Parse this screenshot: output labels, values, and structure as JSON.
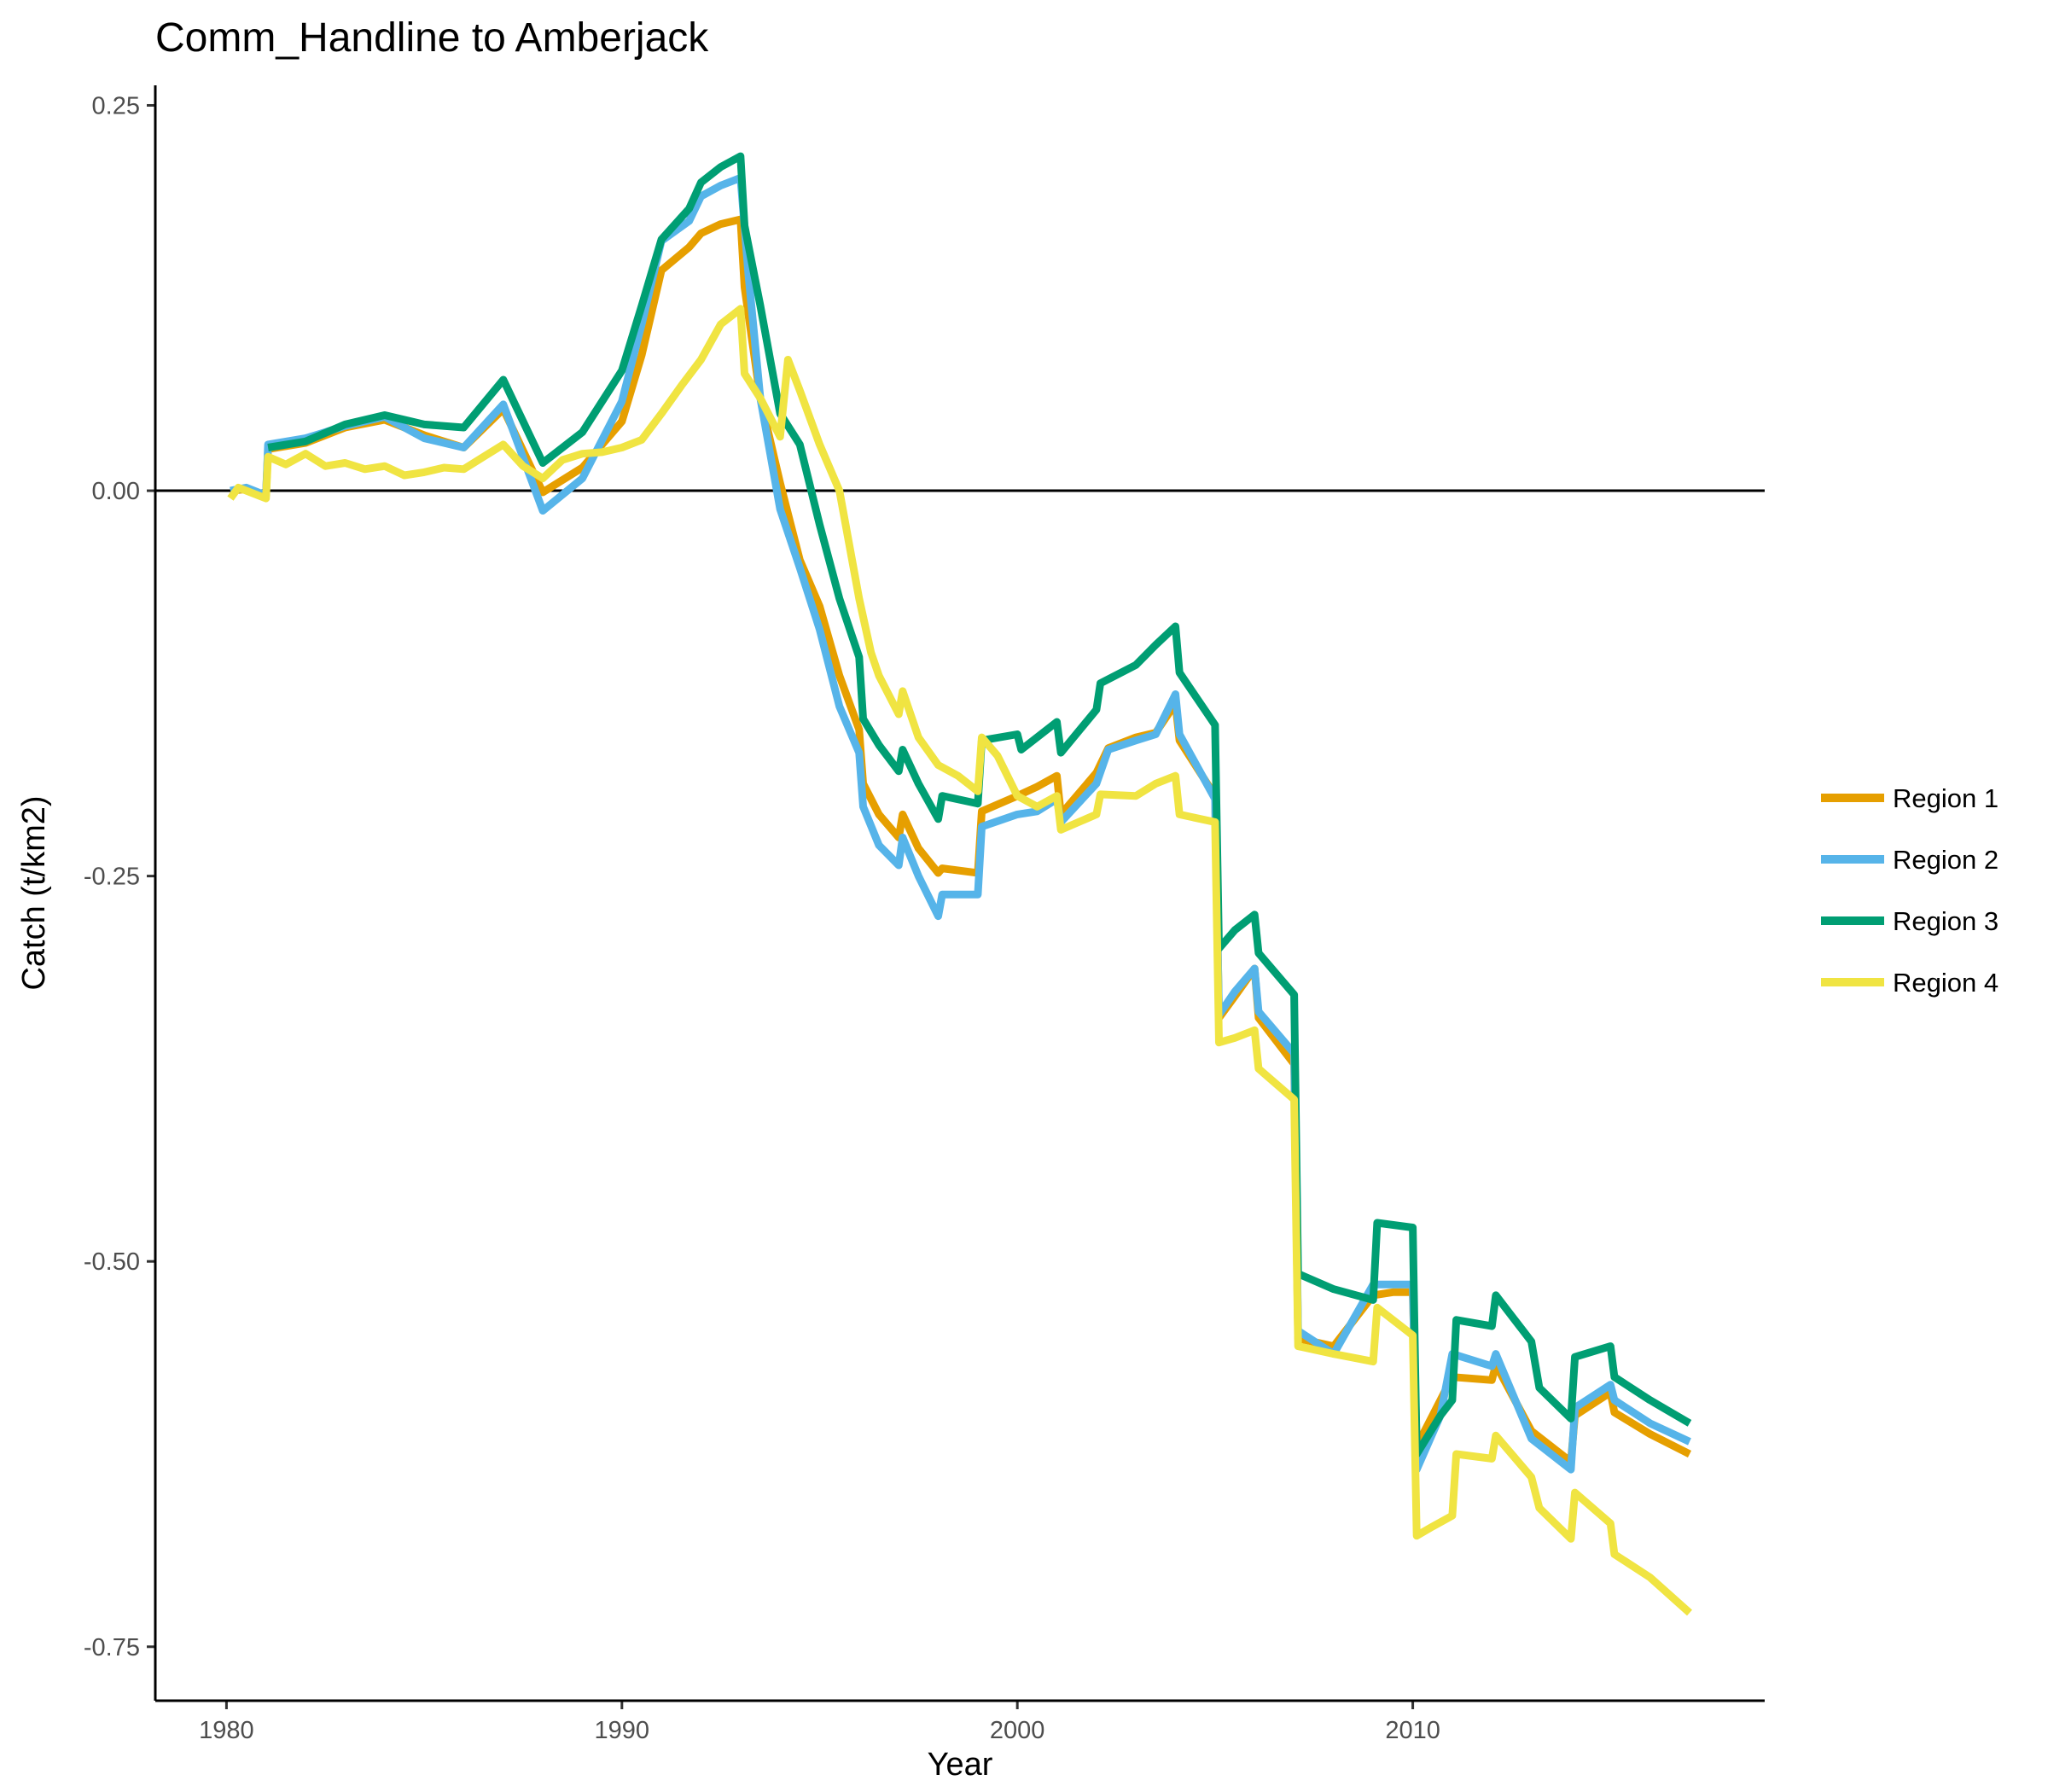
{
  "chart_data": {
    "type": "line",
    "title": "Comm_Handline to Amberjack",
    "xlabel": "Year",
    "ylabel": "Catch (t/km2)",
    "xlim": [
      1978.2,
      2018.9
    ],
    "ylim": [
      -0.785,
      0.263
    ],
    "x_ticks": [
      1980,
      1990,
      2000,
      2010
    ],
    "x_tick_labels": [
      "1980",
      "1990",
      "2000",
      "2010"
    ],
    "y_ticks": [
      0.25,
      0,
      -0.25,
      -0.5,
      -0.75
    ],
    "y_tick_labels": [
      "0.25",
      "0.00",
      "-0.25",
      "-0.50",
      "-0.75"
    ],
    "zero_line": 0,
    "grid": false,
    "legend_position": "right",
    "series": [
      {
        "name": "Region 1",
        "color": "#E69F00",
        "points": [
          [
            1980.1,
            0
          ],
          [
            1980.5,
            0.001
          ],
          [
            1981,
            -0.003
          ],
          [
            1981.05,
            0.027
          ],
          [
            1982,
            0.031
          ],
          [
            1983,
            0.041
          ],
          [
            1984,
            0.046
          ],
          [
            1985,
            0.036
          ],
          [
            1986,
            0.028
          ],
          [
            1987,
            0.053
          ],
          [
            1988,
            -0.001
          ],
          [
            1989,
            0.015
          ],
          [
            1990,
            0.045
          ],
          [
            1990.5,
            0.088
          ],
          [
            1991,
            0.143
          ],
          [
            1991.7,
            0.158
          ],
          [
            1992,
            0.167
          ],
          [
            1992.5,
            0.173
          ],
          [
            1993,
            0.176
          ],
          [
            1993.1,
            0.132
          ],
          [
            1993.5,
            0.06
          ],
          [
            1994,
            0.005
          ],
          [
            1994.5,
            -0.045
          ],
          [
            1995,
            -0.075
          ],
          [
            1995.5,
            -0.12
          ],
          [
            1996,
            -0.155
          ],
          [
            1996.1,
            -0.19
          ],
          [
            1996.5,
            -0.21
          ],
          [
            1997,
            -0.225
          ],
          [
            1997.1,
            -0.21
          ],
          [
            1997.5,
            -0.232
          ],
          [
            1998,
            -0.248
          ],
          [
            1998.1,
            -0.245
          ],
          [
            1999,
            -0.248
          ],
          [
            1999.1,
            -0.208
          ],
          [
            2000,
            -0.198
          ],
          [
            2000.5,
            -0.192
          ],
          [
            2001,
            -0.185
          ],
          [
            2001.1,
            -0.21
          ],
          [
            2002,
            -0.183
          ],
          [
            2002.3,
            -0.167
          ],
          [
            2003,
            -0.16
          ],
          [
            2003.5,
            -0.157
          ],
          [
            2004,
            -0.138
          ],
          [
            2004.1,
            -0.162
          ],
          [
            2005,
            -0.198
          ],
          [
            2005.1,
            -0.342
          ],
          [
            2005.5,
            -0.328
          ],
          [
            2006,
            -0.31
          ],
          [
            2006.1,
            -0.342
          ],
          [
            2007,
            -0.372
          ],
          [
            2007.1,
            -0.55
          ],
          [
            2008,
            -0.555
          ],
          [
            2009,
            -0.522
          ],
          [
            2009.5,
            -0.52
          ],
          [
            2010,
            -0.52
          ],
          [
            2010.1,
            -0.62
          ],
          [
            2010.7,
            -0.59
          ],
          [
            2011,
            -0.575
          ],
          [
            2012,
            -0.577
          ],
          [
            2012.1,
            -0.567
          ],
          [
            2013,
            -0.61
          ],
          [
            2014,
            -0.63
          ],
          [
            2014.1,
            -0.6
          ],
          [
            2015,
            -0.585
          ],
          [
            2015.1,
            -0.598
          ],
          [
            2016,
            -0.612
          ],
          [
            2017,
            -0.625
          ]
        ]
      },
      {
        "name": "Region 2",
        "color": "#56B4E9",
        "points": [
          [
            1980.1,
            0
          ],
          [
            1980.5,
            0.002
          ],
          [
            1981,
            -0.003
          ],
          [
            1981.05,
            0.03
          ],
          [
            1982,
            0.034
          ],
          [
            1983,
            0.042
          ],
          [
            1984,
            0.048
          ],
          [
            1985,
            0.034
          ],
          [
            1986,
            0.028
          ],
          [
            1987,
            0.056
          ],
          [
            1988,
            -0.013
          ],
          [
            1989,
            0.008
          ],
          [
            1990,
            0.058
          ],
          [
            1990.5,
            0.108
          ],
          [
            1991,
            0.162
          ],
          [
            1991.7,
            0.175
          ],
          [
            1992,
            0.191
          ],
          [
            1992.5,
            0.198
          ],
          [
            1993,
            0.203
          ],
          [
            1993.2,
            0.14
          ],
          [
            1993.5,
            0.06
          ],
          [
            1994,
            -0.012
          ],
          [
            1994.5,
            -0.05
          ],
          [
            1995,
            -0.09
          ],
          [
            1995.5,
            -0.14
          ],
          [
            1996,
            -0.17
          ],
          [
            1996.1,
            -0.205
          ],
          [
            1996.5,
            -0.23
          ],
          [
            1997,
            -0.243
          ],
          [
            1997.1,
            -0.225
          ],
          [
            1997.5,
            -0.25
          ],
          [
            1998,
            -0.276
          ],
          [
            1998.1,
            -0.262
          ],
          [
            1999,
            -0.262
          ],
          [
            1999.1,
            -0.218
          ],
          [
            2000,
            -0.21
          ],
          [
            2000.5,
            -0.208
          ],
          [
            2001,
            -0.2
          ],
          [
            2001.1,
            -0.215
          ],
          [
            2002,
            -0.19
          ],
          [
            2002.3,
            -0.168
          ],
          [
            2003,
            -0.162
          ],
          [
            2003.5,
            -0.158
          ],
          [
            2004,
            -0.132
          ],
          [
            2004.1,
            -0.158
          ],
          [
            2005,
            -0.2
          ],
          [
            2005.1,
            -0.34
          ],
          [
            2005.5,
            -0.325
          ],
          [
            2006,
            -0.31
          ],
          [
            2006.1,
            -0.338
          ],
          [
            2007,
            -0.365
          ],
          [
            2007.1,
            -0.545
          ],
          [
            2008,
            -0.56
          ],
          [
            2009,
            -0.515
          ],
          [
            2009.5,
            -0.515
          ],
          [
            2010,
            -0.515
          ],
          [
            2010.1,
            -0.635
          ],
          [
            2010.7,
            -0.6
          ],
          [
            2011,
            -0.56
          ],
          [
            2012,
            -0.568
          ],
          [
            2012.1,
            -0.56
          ],
          [
            2013,
            -0.615
          ],
          [
            2014,
            -0.635
          ],
          [
            2014.1,
            -0.595
          ],
          [
            2015,
            -0.58
          ],
          [
            2015.1,
            -0.59
          ],
          [
            2016,
            -0.605
          ],
          [
            2017,
            -0.617
          ]
        ]
      },
      {
        "name": "Region 3",
        "color": "#009E73",
        "points": [
          [
            1981.05,
            0.028
          ],
          [
            1982,
            0.032
          ],
          [
            1983,
            0.043
          ],
          [
            1984,
            0.049
          ],
          [
            1985,
            0.043
          ],
          [
            1986,
            0.041
          ],
          [
            1987,
            0.072
          ],
          [
            1988,
            0.018
          ],
          [
            1989,
            0.038
          ],
          [
            1990,
            0.078
          ],
          [
            1990.5,
            0.12
          ],
          [
            1991,
            0.163
          ],
          [
            1991.7,
            0.183
          ],
          [
            1992,
            0.2
          ],
          [
            1992.5,
            0.21
          ],
          [
            1993,
            0.217
          ],
          [
            1993.1,
            0.172
          ],
          [
            1993.5,
            0.12
          ],
          [
            1994,
            0.05
          ],
          [
            1994.5,
            0.03
          ],
          [
            1995,
            -0.022
          ],
          [
            1995.5,
            -0.07
          ],
          [
            1996,
            -0.108
          ],
          [
            1996.1,
            -0.148
          ],
          [
            1996.5,
            -0.165
          ],
          [
            1997,
            -0.182
          ],
          [
            1997.1,
            -0.168
          ],
          [
            1997.5,
            -0.19
          ],
          [
            1998,
            -0.213
          ],
          [
            1998.1,
            -0.198
          ],
          [
            1999,
            -0.203
          ],
          [
            1999.1,
            -0.162
          ],
          [
            2000,
            -0.158
          ],
          [
            2000.1,
            -0.168
          ],
          [
            2001,
            -0.15
          ],
          [
            2001.1,
            -0.17
          ],
          [
            2002,
            -0.142
          ],
          [
            2002.1,
            -0.125
          ],
          [
            2003,
            -0.113
          ],
          [
            2003.5,
            -0.1
          ],
          [
            2004,
            -0.088
          ],
          [
            2004.1,
            -0.118
          ],
          [
            2005,
            -0.152
          ],
          [
            2005.1,
            -0.297
          ],
          [
            2005.5,
            -0.285
          ],
          [
            2006,
            -0.275
          ],
          [
            2006.1,
            -0.3
          ],
          [
            2007,
            -0.327
          ],
          [
            2007.1,
            -0.508
          ],
          [
            2008,
            -0.518
          ],
          [
            2009,
            -0.525
          ],
          [
            2009.1,
            -0.475
          ],
          [
            2010,
            -0.478
          ],
          [
            2010.1,
            -0.625
          ],
          [
            2010.7,
            -0.6
          ],
          [
            2011,
            -0.59
          ],
          [
            2011.1,
            -0.538
          ],
          [
            2012,
            -0.542
          ],
          [
            2012.1,
            -0.522
          ],
          [
            2013,
            -0.552
          ],
          [
            2013.2,
            -0.582
          ],
          [
            2014,
            -0.602
          ],
          [
            2014.1,
            -0.562
          ],
          [
            2015,
            -0.555
          ],
          [
            2015.1,
            -0.575
          ],
          [
            2016,
            -0.59
          ],
          [
            2017,
            -0.605
          ]
        ]
      },
      {
        "name": "Region 4",
        "color": "#F0E442",
        "points": [
          [
            1980.1,
            -0.005
          ],
          [
            1980.3,
            0.002
          ],
          [
            1980.5,
            0
          ],
          [
            1981,
            -0.005
          ],
          [
            1981.05,
            0.022
          ],
          [
            1981.5,
            0.017
          ],
          [
            1982,
            0.024
          ],
          [
            1982.5,
            0.016
          ],
          [
            1983,
            0.018
          ],
          [
            1983.5,
            0.014
          ],
          [
            1984,
            0.016
          ],
          [
            1984.5,
            0.01
          ],
          [
            1985,
            0.012
          ],
          [
            1985.5,
            0.015
          ],
          [
            1986,
            0.014
          ],
          [
            1986.5,
            0.022
          ],
          [
            1987,
            0.03
          ],
          [
            1987.5,
            0.016
          ],
          [
            1988,
            0.008
          ],
          [
            1988.5,
            0.02
          ],
          [
            1989,
            0.024
          ],
          [
            1989.5,
            0.025
          ],
          [
            1990,
            0.028
          ],
          [
            1990.5,
            0.033
          ],
          [
            1991,
            0.05
          ],
          [
            1991.5,
            0.068
          ],
          [
            1992,
            0.085
          ],
          [
            1992.5,
            0.108
          ],
          [
            1993,
            0.118
          ],
          [
            1993.1,
            0.076
          ],
          [
            1993.5,
            0.06
          ],
          [
            1994,
            0.035
          ],
          [
            1994.2,
            0.085
          ],
          [
            1994.5,
            0.065
          ],
          [
            1995,
            0.03
          ],
          [
            1995.5,
            0
          ],
          [
            1996,
            -0.07
          ],
          [
            1996.3,
            -0.105
          ],
          [
            1996.5,
            -0.12
          ],
          [
            1997,
            -0.145
          ],
          [
            1997.1,
            -0.13
          ],
          [
            1997.5,
            -0.16
          ],
          [
            1998,
            -0.178
          ],
          [
            1998.5,
            -0.185
          ],
          [
            1999,
            -0.195
          ],
          [
            1999.1,
            -0.16
          ],
          [
            1999.5,
            -0.172
          ],
          [
            2000,
            -0.198
          ],
          [
            2000.5,
            -0.205
          ],
          [
            2001,
            -0.198
          ],
          [
            2001.1,
            -0.22
          ],
          [
            2002,
            -0.21
          ],
          [
            2002.1,
            -0.197
          ],
          [
            2003,
            -0.198
          ],
          [
            2003.5,
            -0.19
          ],
          [
            2004,
            -0.185
          ],
          [
            2004.1,
            -0.21
          ],
          [
            2005,
            -0.215
          ],
          [
            2005.1,
            -0.358
          ],
          [
            2005.5,
            -0.355
          ],
          [
            2006,
            -0.35
          ],
          [
            2006.1,
            -0.375
          ],
          [
            2007,
            -0.395
          ],
          [
            2007.1,
            -0.555
          ],
          [
            2008,
            -0.56
          ],
          [
            2009,
            -0.565
          ],
          [
            2009.1,
            -0.53
          ],
          [
            2010,
            -0.548
          ],
          [
            2010.1,
            -0.678
          ],
          [
            2010.5,
            -0.672
          ],
          [
            2011,
            -0.665
          ],
          [
            2011.1,
            -0.625
          ],
          [
            2012,
            -0.628
          ],
          [
            2012.1,
            -0.613
          ],
          [
            2013,
            -0.64
          ],
          [
            2013.2,
            -0.66
          ],
          [
            2014,
            -0.68
          ],
          [
            2014.1,
            -0.65
          ],
          [
            2015,
            -0.67
          ],
          [
            2015.1,
            -0.69
          ],
          [
            2016,
            -0.705
          ],
          [
            2017,
            -0.728
          ]
        ]
      }
    ]
  }
}
